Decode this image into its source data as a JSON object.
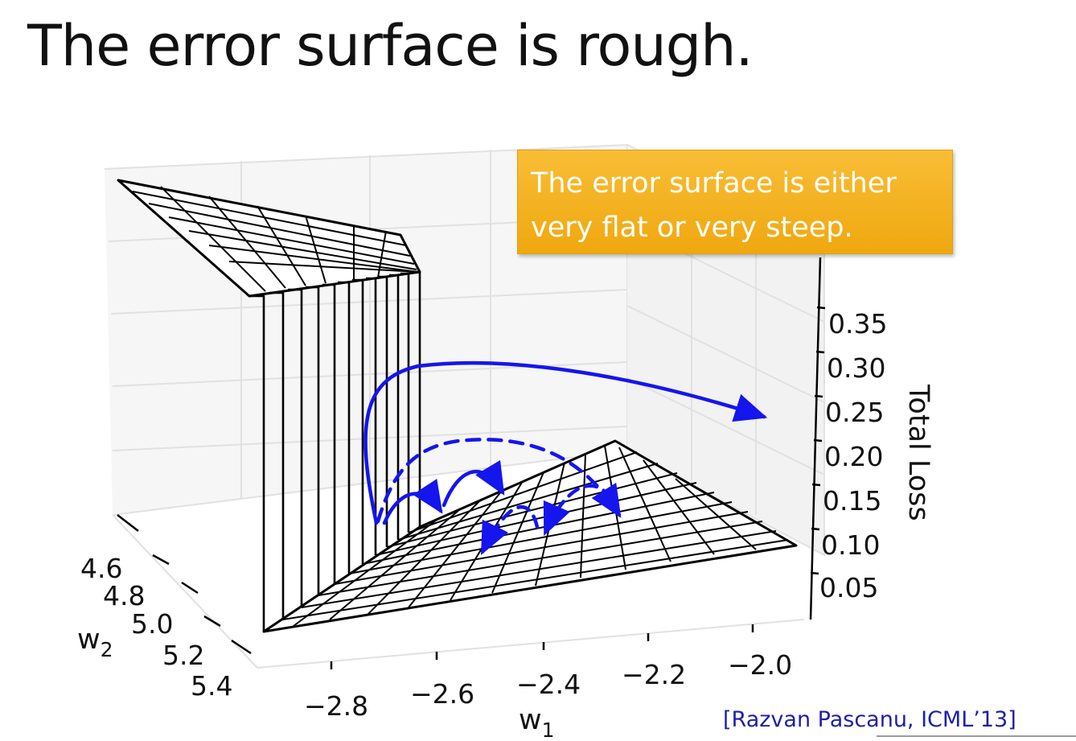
{
  "slide": {
    "title": "The error surface is rough.",
    "callout": "The error surface is either very flat or very steep.",
    "citation": "[Razvan Pascanu, ICML’13]"
  },
  "chart_data": {
    "type": "surface-3d",
    "title": "",
    "xlabel": "w",
    "xlabel_sub": "1",
    "ylabel": "w",
    "ylabel_sub": "2",
    "zlabel": "Total Loss",
    "x_ticks": [
      "−2.8",
      "−2.6",
      "−2.4",
      "−2.2",
      "−2.0"
    ],
    "y_ticks": [
      "4.6",
      "4.8",
      "5.0",
      "5.2",
      "5.4"
    ],
    "z_ticks": [
      "0.05",
      "0.10",
      "0.15",
      "0.20",
      "0.25",
      "0.30",
      "0.35"
    ],
    "z_range": [
      0.05,
      0.35
    ],
    "grid": true,
    "surface": "near-flat plateau around 0.1 with a steep cliff rising toward 0.35 at w1 ≈ -2.8",
    "colors": {
      "surface_wire": "#000000",
      "trajectory": "#1515ee",
      "callout_bg": "#f5b221"
    }
  }
}
